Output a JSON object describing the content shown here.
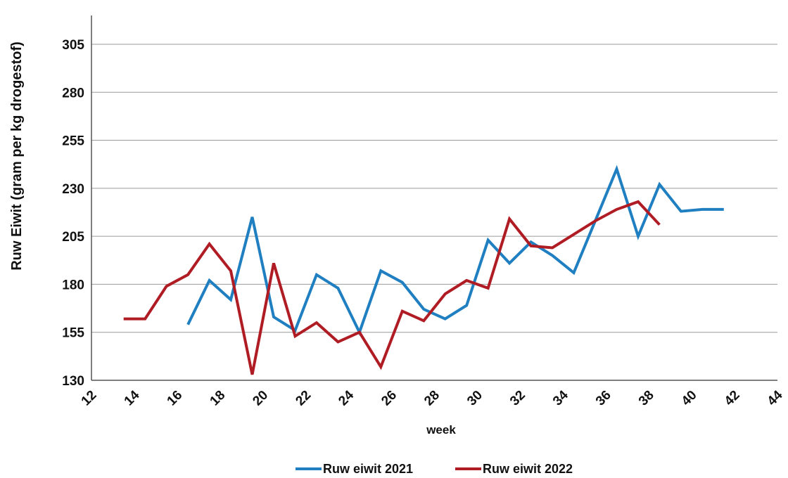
{
  "chart_data": {
    "type": "line",
    "title": "",
    "xlabel": "week",
    "ylabel": "Ruw Eiwit (gram per kg drogestof)",
    "xlim": [
      12,
      44
    ],
    "ylim": [
      130,
      320
    ],
    "x_ticks": [
      "12",
      "14",
      "16",
      "18",
      "20",
      "22",
      "24",
      "26",
      "28",
      "30",
      "32",
      "34",
      "36",
      "38",
      "40",
      "42",
      "44"
    ],
    "y_ticks": [
      "130",
      "155",
      "180",
      "205",
      "230",
      "255",
      "280",
      "305"
    ],
    "grid": "horizontal",
    "legend_position": "bottom",
    "series": [
      {
        "name": "Ruw eiwit 2021",
        "color": "#1f7fc0",
        "x": [
          16.5,
          17.5,
          18.5,
          19.5,
          20.5,
          21.5,
          22.5,
          23.5,
          24.5,
          25.5,
          26.5,
          27.5,
          28.5,
          29.5,
          30.5,
          31.5,
          32.5,
          33.5,
          34.5,
          35.5,
          36.5,
          37.5,
          38.5,
          39.5,
          40.5,
          41.5
        ],
        "values": [
          159,
          182,
          172,
          215,
          163,
          156,
          185,
          178,
          155,
          187,
          181,
          167,
          162,
          169,
          203,
          191,
          202,
          195,
          186,
          213,
          240,
          205,
          232,
          218,
          219,
          219
        ]
      },
      {
        "name": "Ruw eiwit 2022",
        "color": "#b01c24",
        "x": [
          13.5,
          14.5,
          15.5,
          16.5,
          17.5,
          18.5,
          19.5,
          20.5,
          21.5,
          22.5,
          23.5,
          24.5,
          25.5,
          26.5,
          27.5,
          28.5,
          29.5,
          30.5,
          31.5,
          32.5,
          33.5,
          34.5,
          35.5,
          36.5,
          37.5,
          38.5
        ],
        "values": [
          162,
          162,
          179,
          185,
          201,
          187,
          133,
          191,
          153,
          160,
          150,
          155,
          137,
          166,
          161,
          175,
          182,
          178,
          214,
          200,
          199,
          206,
          213,
          219,
          223,
          211
        ]
      }
    ]
  }
}
